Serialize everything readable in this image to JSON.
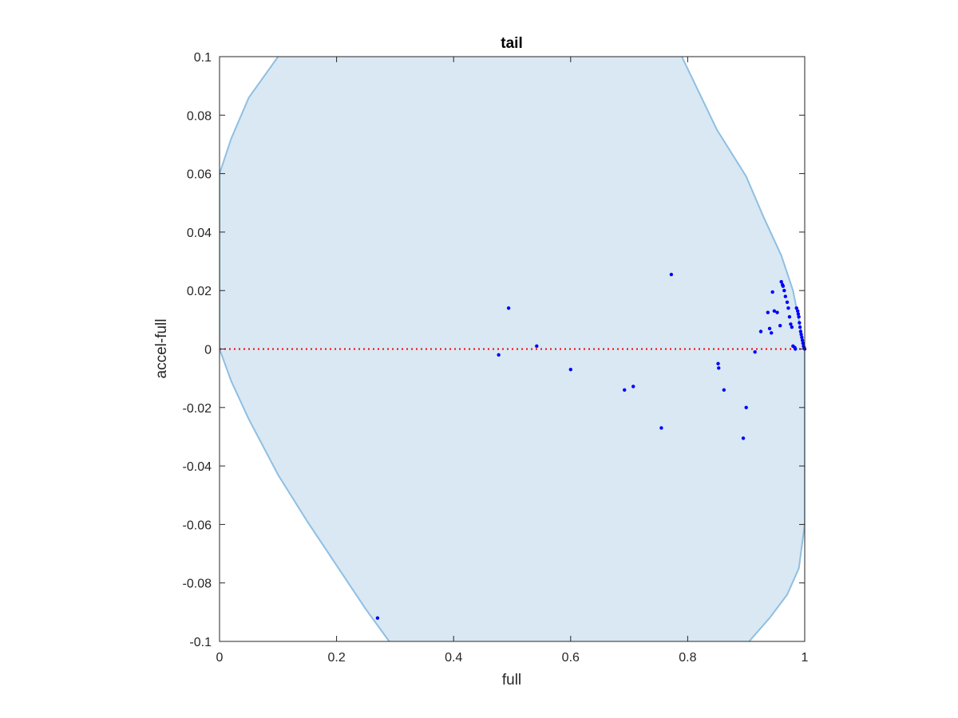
{
  "chart_data": {
    "type": "scatter",
    "title": "tail",
    "xlabel": "full",
    "ylabel": "accel-full",
    "xlim": [
      0,
      1
    ],
    "ylim": [
      -0.1,
      0.1
    ],
    "xticks": [
      "0",
      "0.2",
      "0.4",
      "0.6",
      "0.8",
      "1"
    ],
    "xtick_values": [
      0,
      0.2,
      0.4,
      0.6,
      0.8,
      1
    ],
    "yticks": [
      "-0.1",
      "-0.08",
      "-0.06",
      "-0.04",
      "-0.02",
      "0",
      "0.02",
      "0.04",
      "0.06",
      "0.08",
      "0.1"
    ],
    "ytick_values": [
      -0.1,
      -0.08,
      -0.06,
      -0.04,
      -0.02,
      0,
      0.02,
      0.04,
      0.06,
      0.08,
      0.1
    ],
    "grid": false,
    "reference_line": {
      "y": 0,
      "style": "dotted",
      "color": "#ff0000"
    },
    "region": {
      "fill_color": "#d9e8f3",
      "edge_color": "#8ebfe1",
      "left_boundary": [
        [
          0.1,
          0.1
        ],
        [
          0.05,
          0.086
        ],
        [
          0.02,
          0.072
        ],
        [
          0,
          0.06
        ],
        [
          0,
          0
        ],
        [
          0.02,
          -0.011
        ],
        [
          0.05,
          -0.024
        ],
        [
          0.1,
          -0.043
        ],
        [
          0.15,
          -0.059
        ],
        [
          0.2,
          -0.074
        ],
        [
          0.25,
          -0.089
        ],
        [
          0.29,
          -0.1
        ]
      ],
      "right_boundary": [
        [
          0.905,
          -0.1
        ],
        [
          0.94,
          -0.092
        ],
        [
          0.97,
          -0.084
        ],
        [
          0.99,
          -0.075
        ],
        [
          1.0,
          -0.06
        ],
        [
          1.0,
          0
        ],
        [
          0.98,
          0.02
        ],
        [
          0.96,
          0.032
        ],
        [
          0.93,
          0.045
        ],
        [
          0.9,
          0.059
        ],
        [
          0.85,
          0.075
        ],
        [
          0.79,
          0.1
        ]
      ]
    },
    "series": [
      {
        "color": "#0000ff",
        "x": [
          0.27,
          0.477,
          0.494,
          0.542,
          0.6,
          0.692,
          0.707,
          0.755,
          0.772,
          0.852,
          0.853,
          0.862,
          0.895,
          0.9,
          0.915,
          0.925,
          0.937,
          0.94,
          0.943,
          0.945,
          0.948,
          0.953,
          0.958,
          0.96,
          0.962,
          0.963,
          0.965,
          0.967,
          0.97,
          0.972,
          0.974,
          0.976,
          0.978,
          0.98,
          0.983,
          0.984,
          0.986,
          0.988,
          0.989,
          0.99,
          0.991,
          0.992,
          0.993,
          0.994,
          0.995,
          0.996,
          0.997,
          0.998,
          0.999,
          1.0
        ],
        "y": [
          -0.092,
          -0.002,
          0.014,
          0.001,
          -0.007,
          -0.014,
          -0.0128,
          -0.027,
          0.0255,
          -0.005,
          -0.0065,
          -0.014,
          -0.0305,
          -0.02,
          -0.001,
          0.006,
          0.0125,
          0.007,
          0.0055,
          0.0195,
          0.013,
          0.0125,
          0.008,
          0.023,
          0.022,
          0.0215,
          0.02,
          0.018,
          0.016,
          0.014,
          0.011,
          0.0085,
          0.0075,
          0.001,
          0.0005,
          0.0,
          0.014,
          0.013,
          0.012,
          0.011,
          0.009,
          0.0075,
          0.006,
          0.005,
          0.004,
          0.003,
          0.002,
          0.001,
          0.0005,
          0.0
        ]
      }
    ]
  }
}
